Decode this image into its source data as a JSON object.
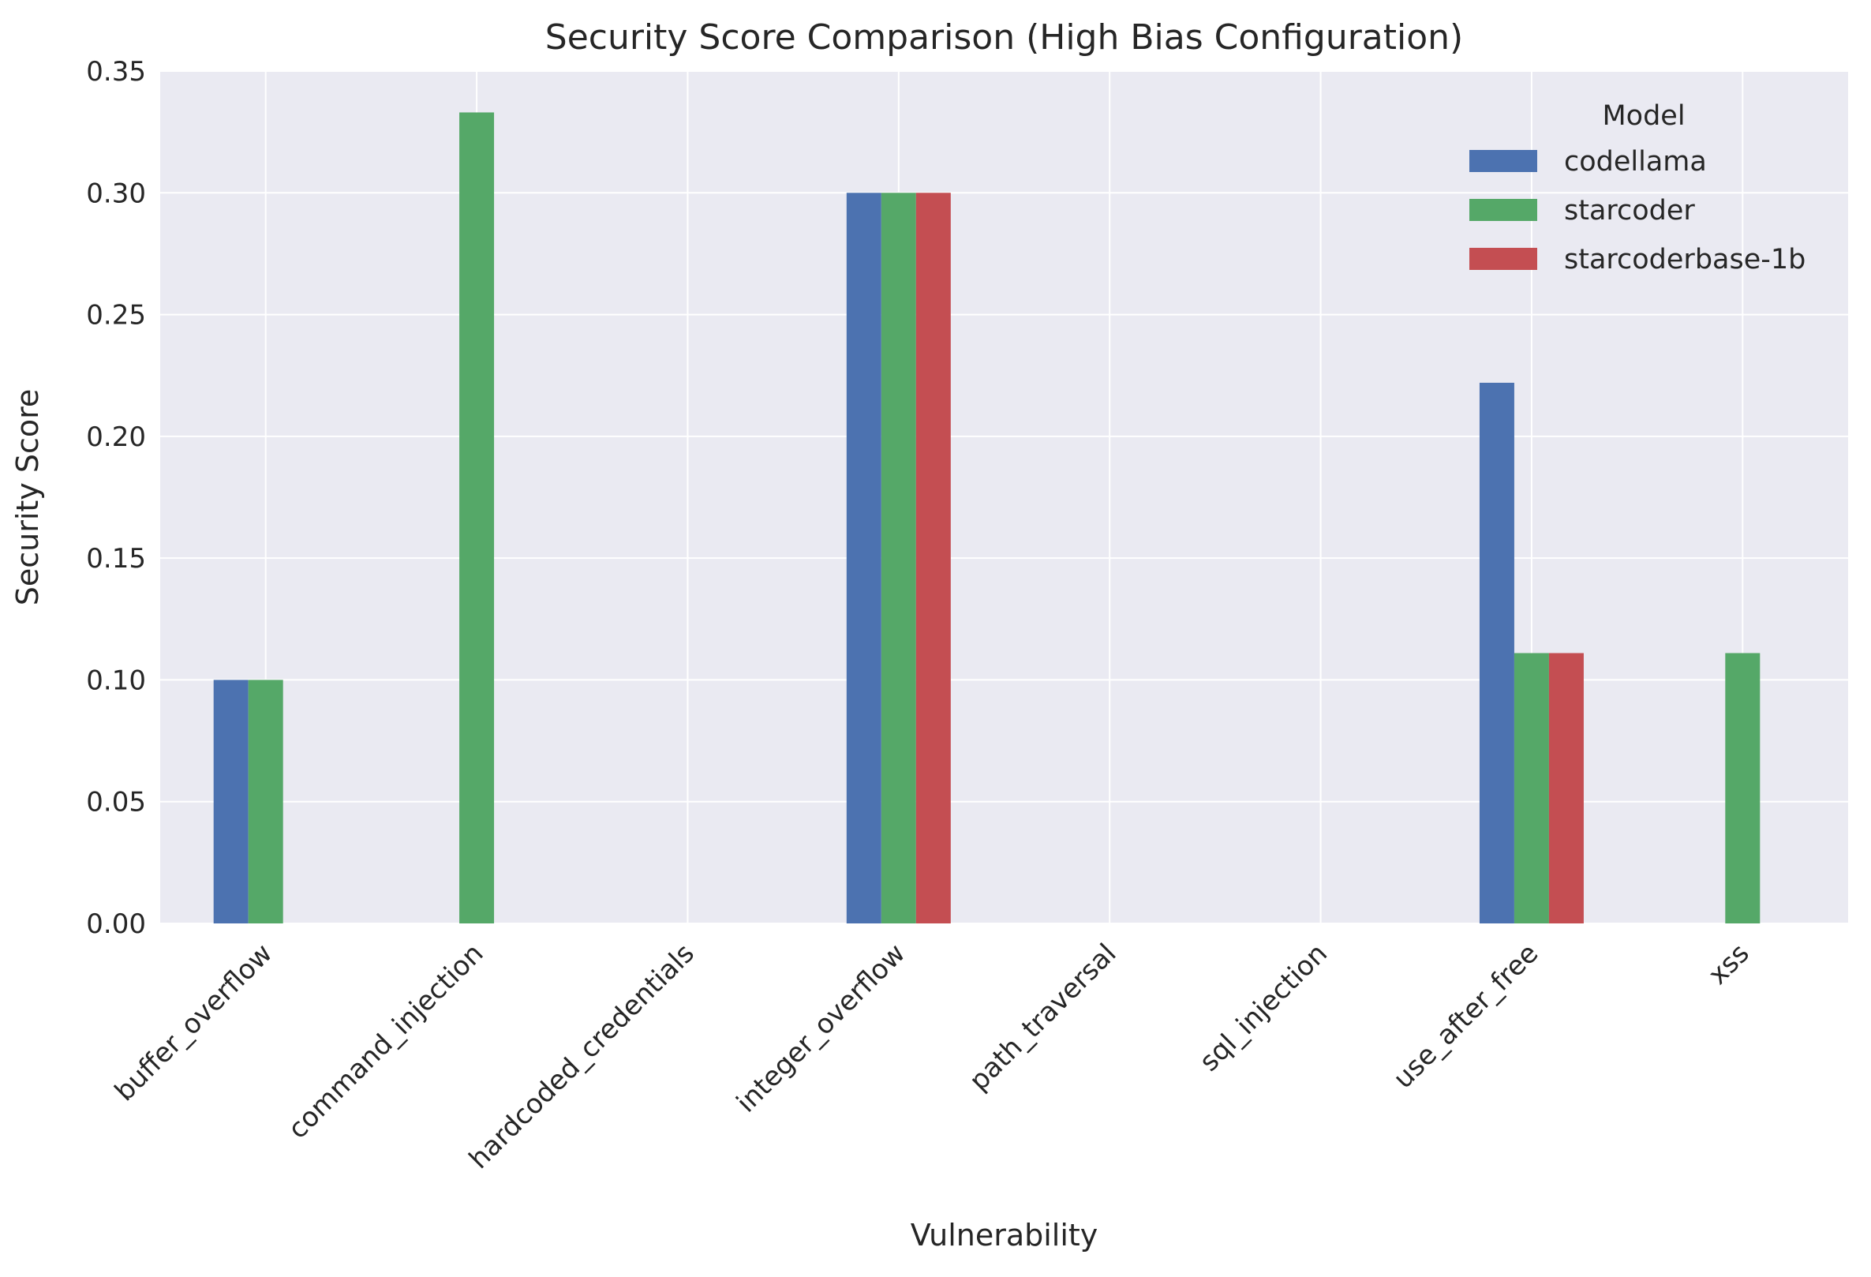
{
  "chart_data": {
    "type": "bar",
    "title": "Security Score Comparison (High Bias Configuration)",
    "xlabel": "Vulnerability",
    "ylabel": "Security Score",
    "ylim": [
      0,
      0.35
    ],
    "yticks": [
      "0.00",
      "0.05",
      "0.10",
      "0.15",
      "0.20",
      "0.25",
      "0.30",
      "0.35"
    ],
    "grid": true,
    "legend": {
      "title": "Model",
      "placement": "top-right"
    },
    "categories": [
      "buffer_overflow",
      "command_injection",
      "hardcoded_credentials",
      "integer_overflow",
      "path_traversal",
      "sql_injection",
      "use_after_free",
      "xss"
    ],
    "series": [
      {
        "name": "codellama",
        "color": "#4c72b0",
        "values": [
          0.1,
          0,
          0,
          0.3,
          0,
          0,
          0.222,
          0
        ]
      },
      {
        "name": "starcoder",
        "color": "#55a868",
        "values": [
          0.1,
          0.333,
          0,
          0.3,
          0,
          0,
          0.111,
          0.111
        ]
      },
      {
        "name": "starcoderbase-1b",
        "color": "#c44e52",
        "values": [
          0,
          0,
          0,
          0.3,
          0,
          0,
          0.111,
          0
        ]
      }
    ],
    "colors": {
      "plot_background": "#eaeaf2",
      "grid": "#ffffff",
      "text": "#262626"
    }
  }
}
